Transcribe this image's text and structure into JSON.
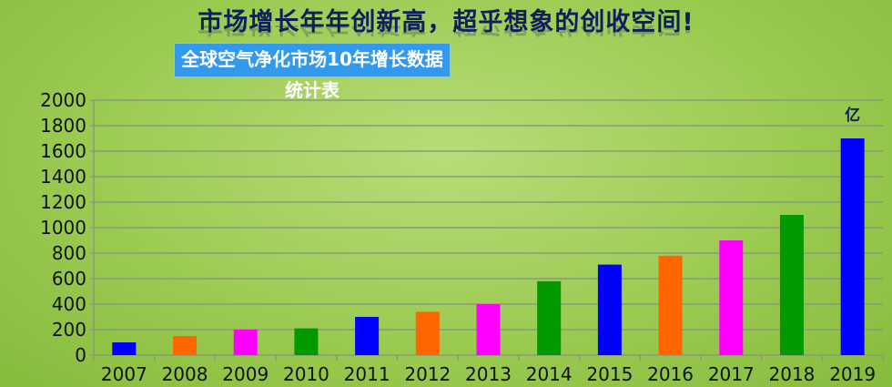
{
  "header": {
    "title": "市场增长年年创新高，超乎想象的创收空间!",
    "subtitle": "全球空气净化市场10年增长数据统计表"
  },
  "chart_data": {
    "type": "bar",
    "title": "全球空气净化市场10年增长数据统计表",
    "unit_label": "亿",
    "categories": [
      "2007",
      "2008",
      "2009",
      "2010",
      "2011",
      "2012",
      "2013",
      "2014",
      "2015",
      "2016",
      "2017",
      "2018",
      "2019"
    ],
    "values": [
      100,
      150,
      200,
      210,
      300,
      340,
      400,
      580,
      710,
      780,
      900,
      1100,
      1700
    ],
    "colors": [
      "#0000ff",
      "#ff6600",
      "#ff00ff",
      "#009900",
      "#0000ff",
      "#ff6600",
      "#ff00ff",
      "#009900",
      "#0000ff",
      "#ff6600",
      "#ff00ff",
      "#009900",
      "#0000ff"
    ],
    "ylim": [
      0,
      2000
    ],
    "yticks": [
      0,
      200,
      400,
      600,
      800,
      1000,
      1200,
      1400,
      1600,
      1800,
      2000
    ],
    "grid": true,
    "legend": "none"
  }
}
